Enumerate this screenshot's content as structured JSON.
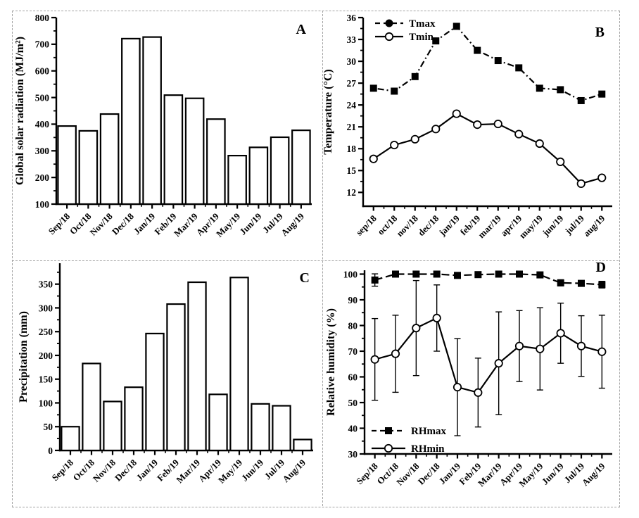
{
  "figure": {
    "colors": {
      "ink": "#000000",
      "background": "#ffffff",
      "border": "#a3a3a3"
    }
  },
  "chart_data": [
    {
      "panel_label": "A",
      "type": "bar",
      "title": "",
      "xlabel": "",
      "ylabel": "Global solar radiation (MJ/m²)",
      "categories": [
        "Sep/18",
        "Oct/18",
        "Nov/18",
        "Dec/18",
        "Jan/19",
        "Feb/19",
        "Mar/19",
        "Apr/19",
        "May/19",
        "Jun/19",
        "Jul/19",
        "Aug/19"
      ],
      "values": [
        393,
        375,
        438,
        721,
        727,
        509,
        497,
        419,
        282,
        313,
        351,
        377
      ],
      "ylim": [
        100,
        800
      ],
      "yticks": [
        100,
        200,
        300,
        400,
        500,
        600,
        700,
        800
      ],
      "yminor": [
        150,
        250,
        350,
        450,
        550,
        650,
        750
      ],
      "bar_fill": "#ffffff",
      "grid": false,
      "legend_pos": "none"
    },
    {
      "panel_label": "B",
      "type": "line",
      "title": "",
      "xlabel": "",
      "ylabel": "Temperature (°C)",
      "categories": [
        "sep/18",
        "oct/18",
        "nov/18",
        "dec/18",
        "jan/19",
        "feb/19",
        "mar/19",
        "apr/19",
        "may/19",
        "jun/19",
        "jul/19",
        "aug/19"
      ],
      "series": [
        {
          "name": "Tmax",
          "marker": "square-filled",
          "legend_marker": "circle-filled",
          "line": "dash-dot",
          "values": [
            26.3,
            25.9,
            27.9,
            32.8,
            34.8,
            31.5,
            30.1,
            29.1,
            26.3,
            26.1,
            24.6,
            25.5
          ]
        },
        {
          "name": "Tmin",
          "marker": "circle-open",
          "legend_marker": "circle-open",
          "line": "solid",
          "values": [
            16.6,
            18.5,
            19.3,
            20.7,
            22.8,
            21.3,
            21.4,
            20.0,
            18.7,
            16.2,
            13.2,
            14.0
          ]
        }
      ],
      "ylim": [
        10.1,
        36
      ],
      "yticks": [
        12,
        15,
        18,
        21,
        24,
        27,
        30,
        33,
        36
      ],
      "yminor": [
        13.5,
        16.5,
        19.5,
        22.5,
        25.5,
        28.5,
        31.5,
        34.5
      ],
      "grid": false,
      "legend_pos": "top-left"
    },
    {
      "panel_label": "C",
      "type": "bar",
      "title": "",
      "xlabel": "",
      "ylabel": "Precipitation (mm)",
      "categories": [
        "Sep/18",
        "Oct/18",
        "Nov/18",
        "Dec/18",
        "Jan/19",
        "Feb/19",
        "Mar/19",
        "Apr/19",
        "May/19",
        "Jun/19",
        "Jul/19",
        "Aug/19"
      ],
      "values": [
        50,
        183,
        103,
        133,
        246,
        308,
        354,
        118,
        364,
        98,
        94,
        23
      ],
      "ylim": [
        0,
        394
      ],
      "yticks": [
        0,
        50,
        100,
        150,
        200,
        250,
        300,
        350
      ],
      "yminor": [
        25,
        75,
        125,
        175,
        225,
        275,
        325,
        375
      ],
      "bar_fill": "#ffffff",
      "grid": false,
      "legend_pos": "none"
    },
    {
      "panel_label": "D",
      "type": "line",
      "title": "",
      "xlabel": "",
      "ylabel": "Relative humidity (%)",
      "categories": [
        "Sep/18",
        "Oct/18",
        "Nov/18",
        "Dec/18",
        "Jan/19",
        "Feb/19",
        "Mar/19",
        "Apr/19",
        "May/19",
        "Jun/19",
        "Jul/19",
        "Aug/19"
      ],
      "series": [
        {
          "name": "RHmax",
          "marker": "square-filled",
          "legend_marker": "square-filled",
          "line": "dashed",
          "values": [
            97.7,
            100,
            100,
            100,
            99.5,
            99.8,
            100,
            100,
            99.7,
            96.6,
            96.4,
            95.9
          ],
          "errors": [
            2.4,
            0.4,
            0.4,
            0.6,
            0.8,
            0.5,
            0.4,
            0.4,
            0.8,
            1.2,
            0.9,
            1.3
          ]
        },
        {
          "name": "RHmin",
          "marker": "circle-open",
          "legend_marker": "circle-open",
          "line": "solid",
          "values": [
            66.8,
            69,
            79,
            82.9,
            56,
            53.9,
            65.3,
            72,
            70.9,
            77,
            72,
            69.8
          ],
          "errors": [
            15.9,
            15,
            18.5,
            12.9,
            18.9,
            13.4,
            20,
            13.8,
            16,
            11.7,
            11.8,
            14.2
          ]
        }
      ],
      "ylim": [
        30,
        101.5
      ],
      "yticks": [
        30,
        40,
        50,
        60,
        70,
        80,
        90,
        100
      ],
      "yminor": [
        35,
        45,
        55,
        65,
        75,
        85,
        95
      ],
      "grid": false,
      "legend_pos": "bottom-left"
    }
  ]
}
